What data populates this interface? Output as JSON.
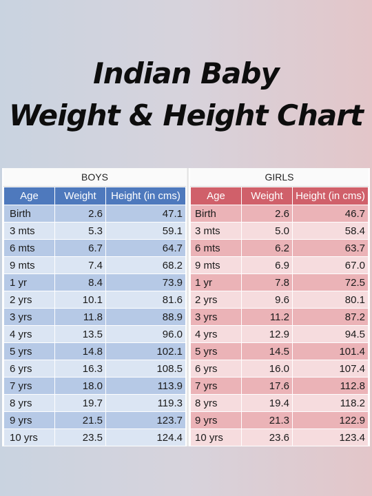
{
  "title_line1": "Indian Baby",
  "title_line2": "Weight & Height Chart",
  "chart_data": {
    "type": "table",
    "title": "Indian Baby Weight & Height Chart",
    "columns": [
      "Age",
      "Weight",
      "Height (in cms)"
    ],
    "groups": [
      {
        "name": "BOYS",
        "rows": [
          [
            "Birth",
            "2.6",
            "47.1"
          ],
          [
            "3 mts",
            "5.3",
            "59.1"
          ],
          [
            "6 mts",
            "6.7",
            "64.7"
          ],
          [
            "9 mts",
            "7.4",
            "68.2"
          ],
          [
            "1 yr",
            "8.4",
            "73.9"
          ],
          [
            "2 yrs",
            "10.1",
            "81.6"
          ],
          [
            "3 yrs",
            "11.8",
            "88.9"
          ],
          [
            "4 yrs",
            "13.5",
            "96.0"
          ],
          [
            "5 yrs",
            "14.8",
            "102.1"
          ],
          [
            "6 yrs",
            "16.3",
            "108.5"
          ],
          [
            "7 yrs",
            "18.0",
            "113.9"
          ],
          [
            "8 yrs",
            "19.7",
            "119.3"
          ],
          [
            "9 yrs",
            "21.5",
            "123.7"
          ],
          [
            "10 yrs",
            "23.5",
            "124.4"
          ]
        ]
      },
      {
        "name": "GIRLS",
        "rows": [
          [
            "Birth",
            "2.6",
            "46.7"
          ],
          [
            "3 mts",
            "5.0",
            "58.4"
          ],
          [
            "6 mts",
            "6.2",
            "63.7"
          ],
          [
            "9 mts",
            "6.9",
            "67.0"
          ],
          [
            "1 yr",
            "7.8",
            "72.5"
          ],
          [
            "2 yrs",
            "9.6",
            "80.1"
          ],
          [
            "3 yrs",
            "11.2",
            "87.2"
          ],
          [
            "4 yrs",
            "12.9",
            "94.5"
          ],
          [
            "5 yrs",
            "14.5",
            "101.4"
          ],
          [
            "6 yrs",
            "16.0",
            "107.4"
          ],
          [
            "7 yrs",
            "17.6",
            "112.8"
          ],
          [
            "8 yrs",
            "19.4",
            "118.2"
          ],
          [
            "9 yrs",
            "21.3",
            "122.9"
          ],
          [
            "10 yrs",
            "23.6",
            "123.4"
          ]
        ]
      }
    ]
  },
  "colors": {
    "boys_header": "#4e79bd",
    "boys_row_dark": "#b6c9e6",
    "boys_row_light": "#dbe5f3",
    "girls_header": "#d0606a",
    "girls_row_dark": "#ebb3b7",
    "girls_row_light": "#f6dcde"
  }
}
